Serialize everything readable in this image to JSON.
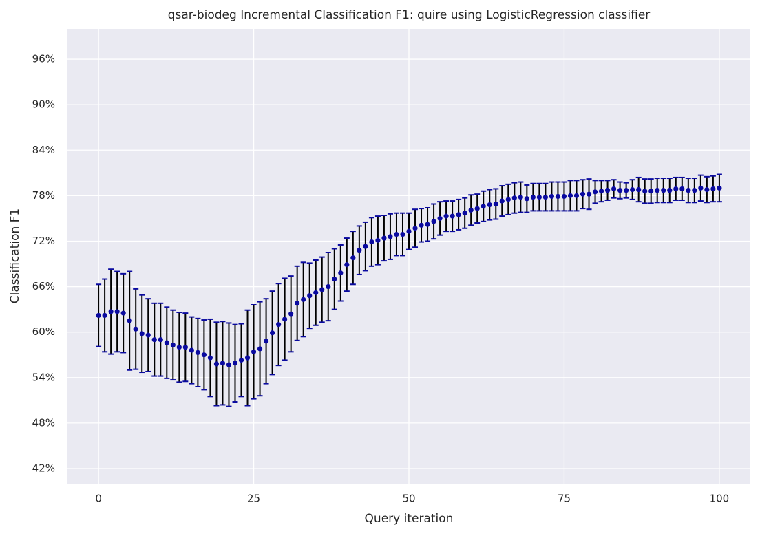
{
  "chart_data": {
    "type": "errorbar",
    "title": "qsar-biodeg Incremental Classification F1: quire using LogisticRegression classifier",
    "xlabel": "Query iteration",
    "ylabel": "Classification F1",
    "x": [
      0,
      1,
      2,
      3,
      4,
      5,
      6,
      7,
      8,
      9,
      10,
      11,
      12,
      13,
      14,
      15,
      16,
      17,
      18,
      19,
      20,
      21,
      22,
      23,
      24,
      25,
      26,
      27,
      28,
      29,
      30,
      31,
      32,
      33,
      34,
      35,
      36,
      37,
      38,
      39,
      40,
      41,
      42,
      43,
      44,
      45,
      46,
      47,
      48,
      49,
      50,
      51,
      52,
      53,
      54,
      55,
      56,
      57,
      58,
      59,
      60,
      61,
      62,
      63,
      64,
      65,
      66,
      67,
      68,
      69,
      70,
      71,
      72,
      73,
      74,
      75,
      76,
      77,
      78,
      79,
      80,
      81,
      82,
      83,
      84,
      85,
      86,
      87,
      88,
      89,
      90,
      91,
      92,
      93,
      94,
      95,
      96,
      97,
      98,
      99,
      100
    ],
    "series": [
      {
        "color": "#0a0aa0",
        "error_color": "#000000",
        "values": [
          62.2,
          62.2,
          62.7,
          62.7,
          62.5,
          61.5,
          60.4,
          59.8,
          59.6,
          59.0,
          59.0,
          58.6,
          58.3,
          58.0,
          58.0,
          57.6,
          57.3,
          57.0,
          56.6,
          55.8,
          55.9,
          55.7,
          55.9,
          56.3,
          56.6,
          57.4,
          57.8,
          58.8,
          59.9,
          61.0,
          61.7,
          62.4,
          63.8,
          64.3,
          64.8,
          65.2,
          65.6,
          66.0,
          67.0,
          67.8,
          68.9,
          69.8,
          70.8,
          71.3,
          71.9,
          72.1,
          72.4,
          72.6,
          72.9,
          72.9,
          73.3,
          73.7,
          74.1,
          74.2,
          74.6,
          75.0,
          75.3,
          75.3,
          75.5,
          75.7,
          76.1,
          76.3,
          76.6,
          76.8,
          76.9,
          77.3,
          77.5,
          77.7,
          77.8,
          77.6,
          77.8,
          77.8,
          77.8,
          77.9,
          77.9,
          77.9,
          78.0,
          78.0,
          78.2,
          78.2,
          78.5,
          78.6,
          78.7,
          78.9,
          78.7,
          78.7,
          78.8,
          78.8,
          78.6,
          78.6,
          78.7,
          78.7,
          78.7,
          78.9,
          78.9,
          78.7,
          78.7,
          79.0,
          78.8,
          78.9,
          79.0
        ],
        "errors": [
          4.1,
          4.8,
          5.6,
          5.3,
          5.2,
          6.5,
          5.3,
          5.1,
          4.8,
          4.8,
          4.8,
          4.7,
          4.6,
          4.6,
          4.5,
          4.4,
          4.5,
          4.6,
          5.1,
          5.5,
          5.5,
          5.5,
          5.1,
          4.8,
          6.3,
          6.2,
          6.2,
          5.6,
          5.5,
          5.4,
          5.4,
          5.0,
          4.9,
          4.9,
          4.3,
          4.3,
          4.3,
          4.5,
          4.0,
          3.7,
          3.5,
          3.5,
          3.2,
          3.2,
          3.2,
          3.2,
          3.0,
          3.0,
          2.8,
          2.8,
          2.4,
          2.5,
          2.2,
          2.2,
          2.3,
          2.2,
          2.0,
          2.0,
          2.0,
          2.0,
          2.0,
          1.9,
          2.0,
          2.0,
          2.0,
          2.0,
          2.0,
          2.0,
          2.0,
          1.8,
          1.8,
          1.8,
          1.8,
          1.9,
          1.9,
          1.9,
          2.0,
          2.0,
          1.9,
          2.0,
          1.5,
          1.4,
          1.3,
          1.2,
          1.1,
          1.0,
          1.3,
          1.6,
          1.6,
          1.6,
          1.6,
          1.6,
          1.6,
          1.5,
          1.5,
          1.6,
          1.6,
          1.7,
          1.7,
          1.7,
          1.8
        ]
      }
    ],
    "xlim": [
      -5,
      105
    ],
    "xticks": [
      0,
      25,
      50,
      75,
      100
    ],
    "ylim": [
      40,
      100
    ],
    "yticks": [
      {
        "value": 42,
        "label": "42%"
      },
      {
        "value": 48,
        "label": "48%"
      },
      {
        "value": 54,
        "label": "54%"
      },
      {
        "value": 60,
        "label": "60%"
      },
      {
        "value": 66,
        "label": "66%"
      },
      {
        "value": 72,
        "label": "72%"
      },
      {
        "value": 78,
        "label": "78%"
      },
      {
        "value": 84,
        "label": "84%"
      },
      {
        "value": 90,
        "label": "90%"
      },
      {
        "value": 96,
        "label": "96%"
      }
    ],
    "grid": true
  }
}
